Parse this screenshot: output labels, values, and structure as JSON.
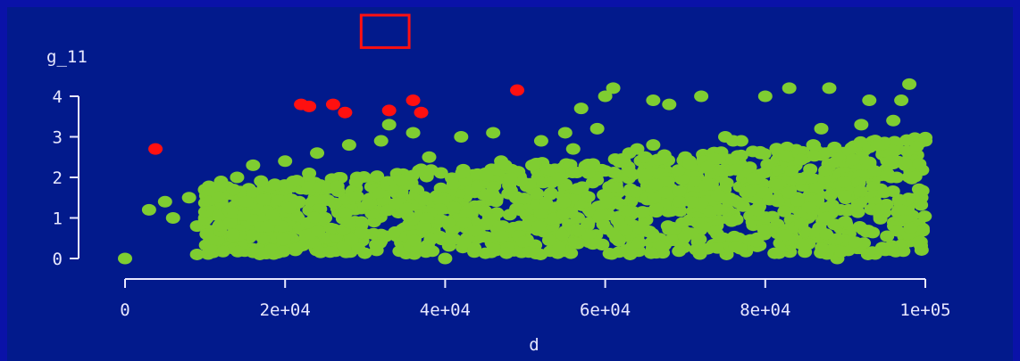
{
  "colors": {
    "frame": "#0a12a8",
    "background": "#021a8c",
    "axis": "#e8e8ff",
    "points": "#7fcd31",
    "highlight": "#ff1010",
    "selection_box": "#ff1010"
  },
  "chart_data": {
    "type": "scatter",
    "title": "",
    "xlabel": "d",
    "ylabel": "g_11",
    "xlim": [
      0,
      100000
    ],
    "ylim": [
      0,
      4.3
    ],
    "x_ticks": [
      {
        "value": 0,
        "label": "0"
      },
      {
        "value": 20000,
        "label": "2e+04"
      },
      {
        "value": 40000,
        "label": "4e+04"
      },
      {
        "value": 60000,
        "label": "6e+04"
      },
      {
        "value": 80000,
        "label": "8e+04"
      },
      {
        "value": 100000,
        "label": "1e+05"
      }
    ],
    "y_ticks": [
      {
        "value": 0,
        "label": "0"
      },
      {
        "value": 1,
        "label": "1"
      },
      {
        "value": 2,
        "label": "2"
      },
      {
        "value": 3,
        "label": "3"
      },
      {
        "value": 4,
        "label": "4"
      }
    ],
    "grid": false,
    "series": [
      {
        "color": "#7fcd31",
        "x": [
          0,
          3000,
          5000,
          6000,
          8000,
          9000,
          10000,
          11000,
          12000,
          13000,
          14000,
          15000,
          16000,
          17000,
          18000,
          19000,
          20000,
          21000,
          22000,
          24000,
          25000,
          26000,
          28000,
          30000,
          32000,
          33000,
          35000,
          36000,
          38000,
          40000,
          42000,
          44000,
          46000,
          48000,
          50000,
          52000,
          54000,
          55000,
          56000,
          57000,
          58000,
          59000,
          60000,
          61000,
          62000,
          64000,
          66000,
          67000,
          68000,
          70000,
          72000,
          74000,
          75000,
          77000,
          79000,
          80000,
          82000,
          83000,
          85000,
          87000,
          88000,
          90000,
          92000,
          93000,
          95000,
          96000,
          97000,
          98000,
          99000,
          100000,
          12000,
          18000,
          23000,
          27000,
          31000,
          37000,
          43000,
          47000,
          53000,
          63000,
          69000,
          73000,
          78000,
          84000,
          91000,
          94000,
          97500,
          9000,
          15000,
          21000,
          29000,
          34000,
          41000,
          45000,
          51000,
          58000,
          65000,
          71000,
          76000,
          81000,
          86000,
          89000,
          93500,
          99500,
          40000,
          56000,
          66000,
          76000,
          86000,
          96000
        ],
        "y": [
          0,
          1.2,
          1.4,
          1.0,
          1.5,
          0.1,
          1.7,
          0.15,
          1.9,
          0.5,
          2.0,
          0.3,
          2.3,
          0.9,
          1.5,
          0.2,
          2.4,
          1.2,
          0.4,
          2.6,
          1.0,
          0.2,
          2.8,
          0.6,
          2.9,
          3.3,
          0.3,
          3.1,
          2.5,
          0.0,
          3.0,
          0.5,
          3.1,
          1.8,
          0.3,
          2.9,
          0.6,
          3.1,
          1.3,
          3.7,
          0.4,
          3.2,
          4.0,
          4.2,
          0.8,
          2.7,
          3.9,
          0.3,
          3.8,
          2.5,
          4.0,
          0.6,
          3.0,
          2.9,
          0.5,
          4.0,
          2.6,
          4.2,
          0.5,
          3.2,
          4.2,
          0.4,
          3.3,
          3.9,
          0.2,
          3.4,
          3.9,
          4.3,
          0.5,
          2.9,
          1.0,
          1.6,
          2.1,
          1.3,
          1.8,
          2.2,
          1.1,
          2.4,
          1.9,
          2.6,
          1.4,
          2.2,
          1.7,
          1.5,
          2.0,
          1.2,
          2.3,
          0.8,
          1.3,
          1.9,
          2.0,
          1.6,
          1.4,
          2.1,
          1.7,
          1.2,
          2.5,
          1.8,
          1.1,
          2.2,
          1.6,
          0.0,
          1.9,
          1.5,
          1.3,
          2.7,
          2.8,
          2.9,
          2.8,
          2.7
        ]
      },
      {
        "color": "#ff1010",
        "x": [
          3800,
          22000,
          23000,
          26000,
          27500,
          33000,
          36000,
          37000,
          49000
        ],
        "y": [
          2.7,
          3.8,
          3.75,
          3.8,
          3.6,
          3.65,
          3.9,
          3.6,
          4.15
        ]
      }
    ],
    "selection_box_x": [
      29500,
      35500
    ],
    "selection_box_y": [
      5.2,
      6.0
    ],
    "legend": "none"
  }
}
